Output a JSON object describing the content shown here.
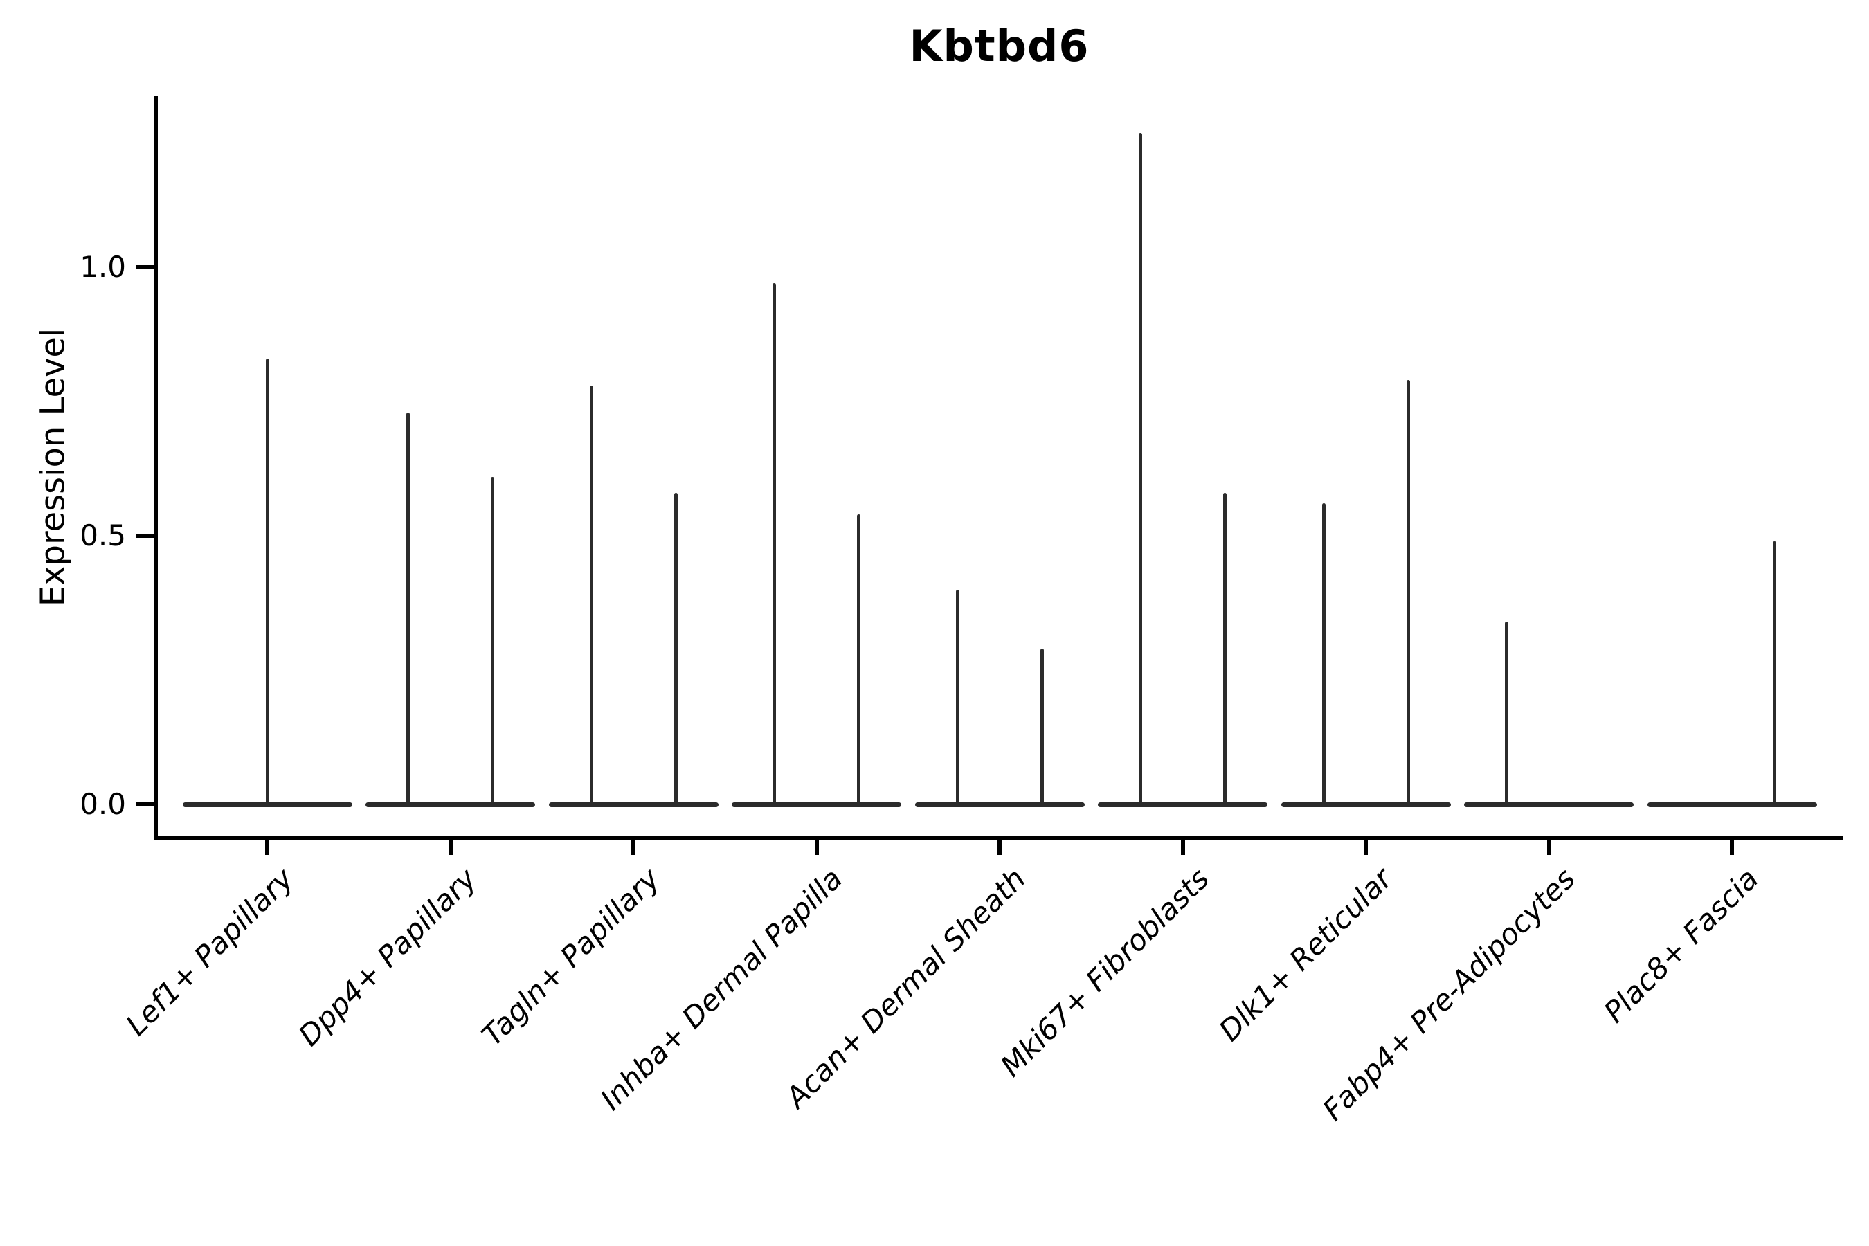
{
  "title": "Kbtbd6",
  "y_axis": {
    "label": "Expression Level",
    "tick_labels": [
      "0.0",
      "0.5",
      "1.0"
    ],
    "tick_values": [
      0.0,
      0.5,
      1.0
    ]
  },
  "colors": {
    "background": "#ffffff",
    "violin": "#2b2b2b",
    "axis": "#000000",
    "text": "#000000"
  },
  "chart_data": {
    "type": "violin",
    "title": "Kbtbd6",
    "xlabel": "",
    "ylabel": "Expression Level",
    "ylim": [
      -0.06,
      1.32
    ],
    "yticks": [
      0.0,
      0.5,
      1.0
    ],
    "grid": false,
    "legend": false,
    "note": "Violin plot of single-gene expression; each cell-type category shows flat-bottomed violin(s) collapsed to a baseline with a thin spike reaching the maximum expression value. Categories with two grouped violins have spikes at left/right quarter positions.",
    "categories": [
      {
        "label": "Lef1+ Papillary",
        "violins": [
          {
            "position": "center",
            "max_expression": 0.83
          }
        ]
      },
      {
        "label": "Dpp4+ Papillary",
        "violins": [
          {
            "position": "left",
            "max_expression": 0.73
          },
          {
            "position": "right",
            "max_expression": 0.61
          }
        ]
      },
      {
        "label": "Tagln+ Papillary",
        "violins": [
          {
            "position": "left",
            "max_expression": 0.78
          },
          {
            "position": "right",
            "max_expression": 0.58
          }
        ]
      },
      {
        "label": "Inhba+ Dermal Papilla",
        "violins": [
          {
            "position": "left",
            "max_expression": 0.97
          },
          {
            "position": "right",
            "max_expression": 0.54
          }
        ]
      },
      {
        "label": "Acan+ Dermal Sheath",
        "violins": [
          {
            "position": "left",
            "max_expression": 0.4
          },
          {
            "position": "right",
            "max_expression": 0.29
          }
        ]
      },
      {
        "label": "Mki67+ Fibroblasts",
        "violins": [
          {
            "position": "left",
            "max_expression": 1.25
          },
          {
            "position": "right",
            "max_expression": 0.58
          }
        ]
      },
      {
        "label": "Dlk1+ Reticular",
        "violins": [
          {
            "position": "left",
            "max_expression": 0.56
          },
          {
            "position": "right",
            "max_expression": 0.79
          }
        ]
      },
      {
        "label": "Fabp4+ Pre-Adipocytes",
        "violins": [
          {
            "position": "left",
            "max_expression": 0.34
          }
        ]
      },
      {
        "label": "Plac8+ Fascia",
        "violins": [
          {
            "position": "right",
            "max_expression": 0.49
          }
        ]
      }
    ]
  }
}
